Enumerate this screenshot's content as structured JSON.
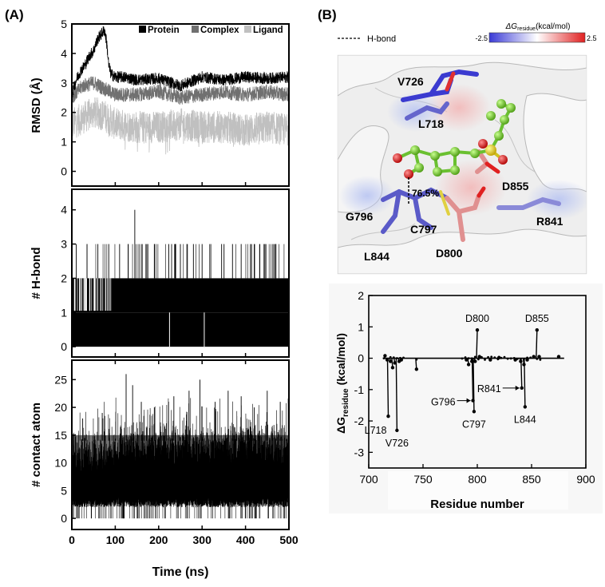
{
  "panel_a_label": "(A)",
  "panel_b_label": "(B)",
  "chart_data": [
    {
      "type": "line",
      "panel": "A-top",
      "ylabel": "RMSD (Å)",
      "ylim": [
        -0.5,
        5
      ],
      "yticks": [
        0,
        1,
        2,
        3,
        4,
        5
      ],
      "xlim": [
        0,
        500
      ],
      "legend_position": "top-right",
      "series": [
        {
          "name": "Protein",
          "color": "#000000",
          "x": [
            0,
            10,
            20,
            30,
            40,
            50,
            55,
            60,
            65,
            70,
            75,
            80,
            85,
            90,
            100,
            120,
            150,
            200,
            250,
            300,
            350,
            400,
            450,
            500
          ],
          "y": [
            2.6,
            3.1,
            3.4,
            3.6,
            3.9,
            4.1,
            4.3,
            4.5,
            4.6,
            4.7,
            4.8,
            4.4,
            3.6,
            3.3,
            3.2,
            3.2,
            3.1,
            3.15,
            2.9,
            3.2,
            3.1,
            3.2,
            3.15,
            3.2
          ]
        },
        {
          "name": "Complex",
          "color": "#707070",
          "x": [
            0,
            25,
            50,
            75,
            100,
            150,
            200,
            250,
            300,
            350,
            400,
            450,
            500
          ],
          "y": [
            2.5,
            2.9,
            3.0,
            2.8,
            2.6,
            2.6,
            2.7,
            2.5,
            2.6,
            2.7,
            2.6,
            2.7,
            2.6
          ]
        },
        {
          "name": "Ligand",
          "color": "#c0c0c0",
          "x": [
            0,
            25,
            50,
            75,
            100,
            150,
            200,
            250,
            300,
            350,
            400,
            450,
            500
          ],
          "y": [
            1.6,
            1.8,
            2.0,
            1.9,
            1.6,
            1.5,
            1.5,
            1.6,
            1.5,
            1.5,
            1.4,
            1.5,
            1.4
          ]
        }
      ]
    },
    {
      "type": "bar",
      "panel": "A-middle",
      "ylabel": "# H-bond",
      "ylim": [
        -0.3,
        4.6
      ],
      "yticks": [
        0,
        1,
        2,
        3,
        4
      ],
      "xlim": [
        0,
        500
      ],
      "typical_range": [
        1,
        2
      ],
      "spikes": [
        {
          "x": 145,
          "y": 4
        },
        {
          "x": 10,
          "y": 3
        },
        {
          "x": 35,
          "y": 3
        },
        {
          "x": 60,
          "y": 3
        },
        {
          "x": 85,
          "y": 3
        },
        {
          "x": 110,
          "y": 3
        },
        {
          "x": 130,
          "y": 3
        },
        {
          "x": 160,
          "y": 3
        },
        {
          "x": 175,
          "y": 3
        },
        {
          "x": 190,
          "y": 3
        },
        {
          "x": 250,
          "y": 3
        },
        {
          "x": 265,
          "y": 3
        },
        {
          "x": 280,
          "y": 3
        },
        {
          "x": 300,
          "y": 3
        },
        {
          "x": 320,
          "y": 3
        },
        {
          "x": 345,
          "y": 3
        },
        {
          "x": 370,
          "y": 3
        },
        {
          "x": 390,
          "y": 3
        },
        {
          "x": 420,
          "y": 3
        },
        {
          "x": 445,
          "y": 3
        },
        {
          "x": 470,
          "y": 3
        }
      ],
      "dips": [
        {
          "x": 225,
          "y": 0
        },
        {
          "x": 305,
          "y": 0
        }
      ]
    },
    {
      "type": "bar",
      "panel": "A-bottom",
      "ylabel": "# contact atom",
      "xlabel": "Time (ns)",
      "ylim": [
        -2,
        28.5
      ],
      "yticks": [
        0,
        5,
        10,
        15,
        20,
        25
      ],
      "xlim": [
        0,
        500
      ],
      "xticks": [
        0,
        100,
        200,
        300,
        400,
        500
      ],
      "typical_range": [
        2,
        15
      ],
      "spikes": [
        {
          "x": 25,
          "y": 18
        },
        {
          "x": 70,
          "y": 19
        },
        {
          "x": 125,
          "y": 26
        },
        {
          "x": 140,
          "y": 24
        },
        {
          "x": 160,
          "y": 21
        },
        {
          "x": 190,
          "y": 20
        },
        {
          "x": 235,
          "y": 22
        },
        {
          "x": 270,
          "y": 23
        },
        {
          "x": 295,
          "y": 25
        },
        {
          "x": 330,
          "y": 21
        },
        {
          "x": 360,
          "y": 23
        },
        {
          "x": 390,
          "y": 22
        },
        {
          "x": 420,
          "y": 20
        },
        {
          "x": 450,
          "y": 23
        },
        {
          "x": 480,
          "y": 21
        }
      ]
    },
    {
      "type": "line",
      "panel": "B-bottom",
      "ylabel_main": "ΔG",
      "ylabel_sub": "residue",
      "ylabel_units": "(kcal/mol)",
      "xlabel": "Residue number",
      "xlim": [
        700,
        900
      ],
      "ylim": [
        -3.5,
        2
      ],
      "xticks": [
        700,
        750,
        800,
        850,
        900
      ],
      "yticks": [
        2,
        1,
        0,
        -1,
        -2,
        -3
      ],
      "points": [
        {
          "x": 715,
          "y": 0.08
        },
        {
          "x": 717,
          "y": -0.05
        },
        {
          "x": 718,
          "y": -1.85
        },
        {
          "x": 720,
          "y": -0.1
        },
        {
          "x": 722,
          "y": -0.3
        },
        {
          "x": 724,
          "y": -0.15
        },
        {
          "x": 726,
          "y": -2.3
        },
        {
          "x": 728,
          "y": -0.1
        },
        {
          "x": 730,
          "y": -0.05
        },
        {
          "x": 744,
          "y": -0.35
        },
        {
          "x": 790,
          "y": -0.05
        },
        {
          "x": 792,
          "y": -0.2
        },
        {
          "x": 795,
          "y": -0.1
        },
        {
          "x": 796,
          "y": -1.35
        },
        {
          "x": 797,
          "y": -1.7
        },
        {
          "x": 798,
          "y": -0.1
        },
        {
          "x": 800,
          "y": 0.9
        },
        {
          "x": 802,
          "y": 0.05
        },
        {
          "x": 812,
          "y": -0.05
        },
        {
          "x": 820,
          "y": 0.02
        },
        {
          "x": 835,
          "y": -0.05
        },
        {
          "x": 840,
          "y": -0.1
        },
        {
          "x": 841,
          "y": -0.95
        },
        {
          "x": 843,
          "y": -0.2
        },
        {
          "x": 844,
          "y": -1.55
        },
        {
          "x": 846,
          "y": -0.05
        },
        {
          "x": 852,
          "y": 0.05
        },
        {
          "x": 855,
          "y": 0.9
        },
        {
          "x": 857,
          "y": 0.05
        },
        {
          "x": 875,
          "y": 0.05
        }
      ],
      "annotations": [
        {
          "text": "D800",
          "x": 800,
          "y": 0.9
        },
        {
          "text": "D855",
          "x": 855,
          "y": 0.9
        },
        {
          "text": "L718",
          "x": 718,
          "y": -1.85
        },
        {
          "text": "V726",
          "x": 726,
          "y": -2.3
        },
        {
          "text": "G796",
          "x": 796,
          "y": -1.35
        },
        {
          "text": "C797",
          "x": 797,
          "y": -1.7
        },
        {
          "text": "R841",
          "x": 841,
          "y": -0.95
        },
        {
          "text": "L844",
          "x": 844,
          "y": -1.55
        }
      ]
    }
  ],
  "structure": {
    "hbond_legend": "H-bond",
    "hbond_occupancy": "76.5%",
    "colorbar_title_main": "ΔG",
    "colorbar_title_sub": "residue",
    "colorbar_title_units": "(kcal/mol)",
    "colorbar_min": "-2.5",
    "colorbar_max": "2.5",
    "colorbar_colors": [
      "#3a3ad6",
      "#ffffff",
      "#e02020"
    ],
    "residue_labels": [
      "V726",
      "L718",
      "D855",
      "G796",
      "C797",
      "R841",
      "L844",
      "D800"
    ]
  }
}
